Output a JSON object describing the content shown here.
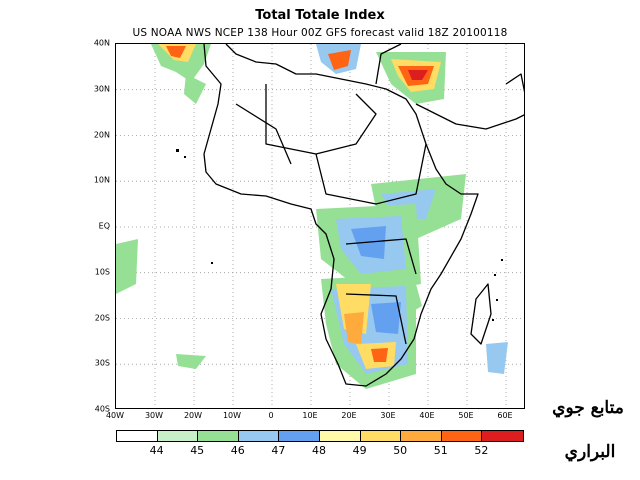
{
  "title": "Total Totale Index",
  "subtitle": "US NOAA NWS NCEP 138 Hour 00Z GFS forecast valid 18Z 20100118",
  "axes": {
    "lat_labels": [
      "40N",
      "30N",
      "20N",
      "10N",
      "EQ",
      "10S",
      "20S",
      "30S",
      "40S"
    ],
    "lon_labels": [
      "40W",
      "30W",
      "20W",
      "10W",
      "0",
      "10E",
      "20E",
      "30E",
      "40E",
      "50E",
      "60E"
    ],
    "lat_range": [
      -40,
      40
    ],
    "lon_range": [
      -40,
      65
    ],
    "grid": "dotted"
  },
  "colorbar": {
    "colors": [
      "#ffffff",
      "#c8f0c8",
      "#96e096",
      "#96c8f0",
      "#64a0f0",
      "#fffaaa",
      "#ffdc64",
      "#ffaa3c",
      "#ff6414",
      "#dc1e1e"
    ],
    "labels": [
      "44",
      "45",
      "46",
      "47",
      "48",
      "49",
      "50",
      "51",
      "52"
    ]
  },
  "watermark": {
    "line1": "متابع جوي",
    "line2": "البراري"
  }
}
